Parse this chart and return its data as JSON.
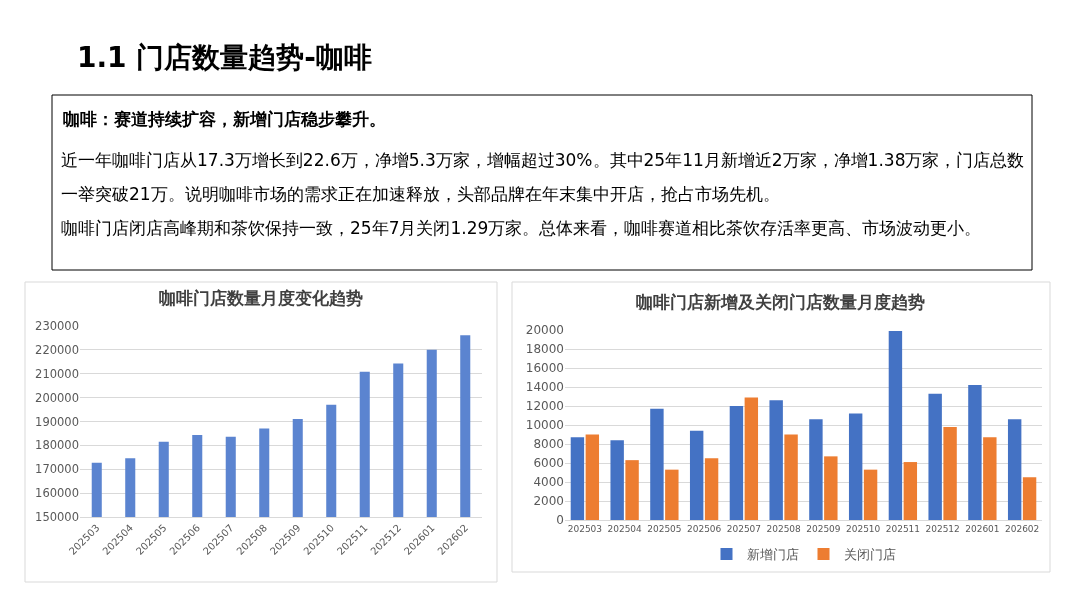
{
  "chart_data": [
    {
      "type": "other",
      "title": "1.1 门店数量趋势-咖啡",
      "subtitle": "咖啡：赛道持续扩容，新增门店稳步攀升。",
      "annotations": [
        "近一年咖啡门店从17.3万增长到22.6万，净增5.3万家，增幅超过30%。其中25年11月新增近2万家，净增1.38万家，门店总数一举突破21万。说明咖啡市场的需求正在加速释放，头部品牌在年末集中开店，抢占市场先机。",
        "咖啡门店闭店高峰期和茶饮保持一致，25年7月关闭1.29万家。总体来看，咖啡赛道相比茶饮存活率更高、市场波动更小。"
      ]
    },
    {
      "type": "bar",
      "title": "咖啡门店数量月度变化趋势",
      "categories": [
        "202503",
        "202504",
        "202505",
        "202506",
        "202507",
        "202508",
        "202509",
        "202510",
        "202511",
        "202512",
        "202601",
        "202602"
      ],
      "values": [
        172700,
        174600,
        181500,
        184300,
        183600,
        187100,
        191000,
        197000,
        210800,
        214300,
        220100,
        226100
      ],
      "color": "#5b84d0",
      "ylim": [
        150000,
        230000
      ],
      "yticks": [
        150000,
        160000,
        170000,
        180000,
        190000,
        200000,
        210000,
        220000,
        230000
      ],
      "grid": "y"
    },
    {
      "type": "bar",
      "title": "咖啡门店新增及关闭门店数量月度趋势",
      "categories": [
        "202503",
        "202504",
        "202505",
        "202506",
        "202507",
        "202508",
        "202509",
        "202510",
        "202511",
        "202512",
        "202601",
        "202602"
      ],
      "series": [
        {
          "name": "新增门店",
          "color": "#4472c4",
          "values": [
            8700,
            8400,
            11700,
            9400,
            12000,
            12600,
            10600,
            11200,
            19900,
            13300,
            14200,
            10600
          ]
        },
        {
          "name": "关闭门店",
          "color": "#ed7d31",
          "values": [
            9000,
            6300,
            5300,
            6500,
            12900,
            9000,
            6700,
            5300,
            6100,
            9800,
            8700,
            4500
          ]
        }
      ],
      "ylim": [
        0,
        20000
      ],
      "yticks": [
        0,
        2000,
        4000,
        6000,
        8000,
        10000,
        12000,
        14000,
        16000,
        18000,
        20000
      ],
      "grid": "y",
      "legend": "bottom"
    }
  ]
}
